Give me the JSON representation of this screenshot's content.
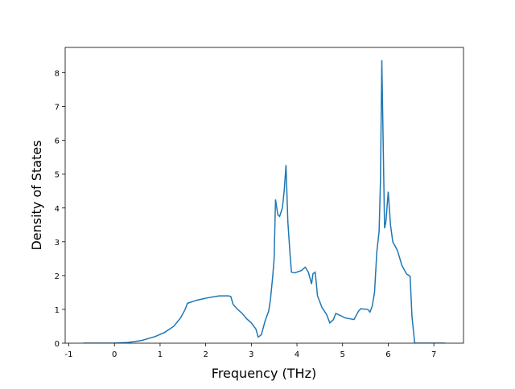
{
  "chart_data": {
    "type": "line",
    "x_label": "Frequency (THz)",
    "y_label": "Density of States",
    "x": [
      -0.68,
      0,
      0.3,
      0.6,
      0.9,
      1.1,
      1.3,
      1.45,
      1.55,
      1.6,
      1.8,
      2.0,
      2.2,
      2.3,
      2.5,
      2.55,
      2.6,
      2.7,
      2.8,
      2.9,
      3.0,
      3.1,
      3.15,
      3.22,
      3.3,
      3.38,
      3.42,
      3.47,
      3.5,
      3.53,
      3.58,
      3.62,
      3.68,
      3.72,
      3.76,
      3.8,
      3.85,
      3.88,
      3.95,
      4.1,
      4.18,
      4.25,
      4.32,
      4.35,
      4.4,
      4.45,
      4.55,
      4.65,
      4.72,
      4.8,
      4.85,
      4.95,
      5.05,
      5.25,
      5.35,
      5.4,
      5.55,
      5.6,
      5.65,
      5.7,
      5.75,
      5.8,
      5.83,
      5.86,
      5.92,
      5.95,
      6.0,
      6.05,
      6.1,
      6.2,
      6.3,
      6.4,
      6.48,
      6.52,
      6.58,
      7.25
    ],
    "series": [
      {
        "color": "#1f77b4",
        "values": [
          0,
          0,
          0.02,
          0.08,
          0.2,
          0.32,
          0.5,
          0.75,
          1.0,
          1.18,
          1.27,
          1.33,
          1.38,
          1.4,
          1.4,
          1.38,
          1.15,
          1.0,
          0.88,
          0.72,
          0.6,
          0.42,
          0.18,
          0.25,
          0.65,
          0.95,
          1.3,
          2.0,
          2.5,
          4.25,
          3.8,
          3.75,
          4.0,
          4.5,
          5.27,
          3.6,
          2.6,
          2.1,
          2.08,
          2.15,
          2.25,
          2.1,
          1.75,
          2.05,
          2.1,
          1.4,
          1.05,
          0.85,
          0.6,
          0.7,
          0.88,
          0.82,
          0.75,
          0.7,
          0.95,
          1.02,
          1.0,
          0.92,
          1.1,
          1.5,
          2.7,
          3.3,
          4.8,
          8.37,
          3.4,
          3.6,
          4.48,
          3.5,
          3.0,
          2.75,
          2.3,
          2.05,
          1.98,
          0.8,
          0,
          0
        ]
      }
    ],
    "xlim": [
      -1.08,
      7.65
    ],
    "ylim": [
      0,
      8.75
    ],
    "xticks": [
      -1,
      0,
      1,
      2,
      3,
      4,
      5,
      6,
      7
    ],
    "yticks": [
      0,
      1,
      2,
      3,
      4,
      5,
      6,
      7,
      8
    ]
  }
}
